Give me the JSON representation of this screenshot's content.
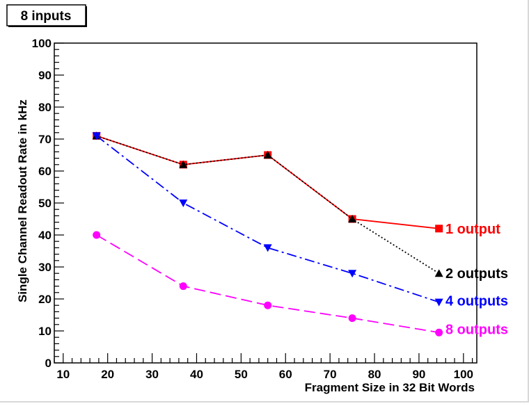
{
  "chart_data": {
    "type": "line",
    "title": "8 inputs",
    "xlabel": "Fragment Size in 32 Bit Words",
    "ylabel": "Single Channel Readout Rate in kHz",
    "xlim": [
      8,
      103
    ],
    "ylim": [
      0,
      100
    ],
    "x_ticks": [
      10,
      20,
      30,
      40,
      50,
      60,
      70,
      80,
      90,
      100
    ],
    "y_ticks": [
      0,
      10,
      20,
      30,
      40,
      50,
      60,
      70,
      80,
      90,
      100
    ],
    "x": [
      17.5,
      37,
      56,
      75,
      94.5
    ],
    "series": [
      {
        "name": "1 output",
        "color": "#ff0000",
        "marker": "square",
        "dash": "",
        "values": [
          71,
          62,
          65,
          45,
          42
        ]
      },
      {
        "name": "2 outputs",
        "color": "#000000",
        "marker": "triangle-up",
        "dash": "2,3",
        "values": [
          71,
          62,
          65,
          45,
          28
        ]
      },
      {
        "name": "4 outputs",
        "color": "#0000ff",
        "marker": "triangle-down",
        "dash": "14,5,3,5",
        "values": [
          71,
          50,
          36,
          28,
          19
        ]
      },
      {
        "name": "8 outputs",
        "color": "#ff00ff",
        "marker": "circle",
        "dash": "16,7",
        "values": [
          40,
          24,
          18,
          14,
          9.5
        ]
      }
    ],
    "label_values": [
      42,
      28,
      19.5,
      10.5
    ],
    "grid": false,
    "legend": "right"
  }
}
